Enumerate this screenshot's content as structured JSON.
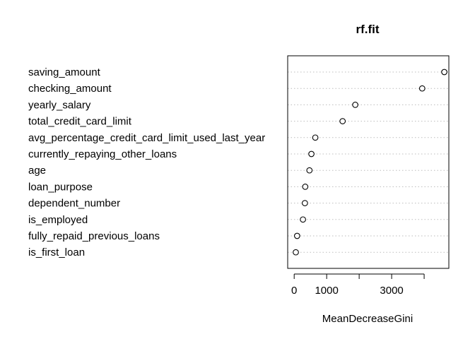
{
  "chart_data": {
    "type": "scatter",
    "title": "rf.fit",
    "xlabel": "MeanDecreaseGini",
    "ylabel": "",
    "categories": [
      "saving_amount",
      "checking_amount",
      "yearly_salary",
      "total_credit_card_limit",
      "avg_percentage_credit_card_limit_used_last_year",
      "currently_repaying_other_loans",
      "age",
      "loan_purpose",
      "dependent_number",
      "is_employed",
      "fully_repaid_previous_loans",
      "is_first_loan"
    ],
    "values": [
      4620,
      3940,
      1880,
      1490,
      650,
      530,
      470,
      340,
      330,
      270,
      90,
      50
    ],
    "xticks": [
      0,
      1000,
      3000
    ],
    "xlim": [
      -200,
      4760
    ],
    "grid": true,
    "legend": "none",
    "colors": {
      "points": "#000000",
      "guides": "#bdbdbd"
    }
  }
}
